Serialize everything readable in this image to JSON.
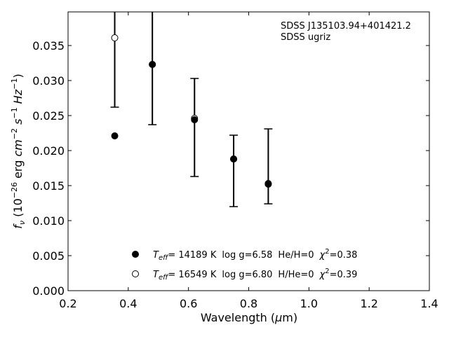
{
  "chart_data": {
    "type": "scatter",
    "xlabel": "Wavelength (μm)",
    "ylabel": "f_ν (10^-26 erg cm^-2 s^-1 Hz^-1)",
    "xlim": [
      0.2,
      1.4
    ],
    "ylim": [
      0.0,
      0.0398
    ],
    "xticks": [
      "0.2",
      "0.4",
      "0.6",
      "0.8",
      "1.0",
      "1.2",
      "1.4"
    ],
    "yticks": [
      "0.000",
      "0.005",
      "0.010",
      "0.015",
      "0.020",
      "0.025",
      "0.030",
      "0.035"
    ],
    "annotation": [
      "SDSS J135103.94+401421.2",
      "SDSS ugriz"
    ],
    "observed": {
      "x": [
        0.355,
        0.48,
        0.62,
        0.75,
        0.865
      ],
      "y": [
        0.0405,
        0.0323,
        0.0245,
        0.0188,
        0.0153
      ],
      "yerr_low": [
        0.0262,
        0.0237,
        0.0163,
        0.012,
        0.0124
      ],
      "yerr_high": [
        0.055,
        0.044,
        0.0303,
        0.0222,
        0.0231
      ]
    },
    "series": [
      {
        "marker": "filled-circle",
        "x": [
          0.355,
          0.48,
          0.62,
          0.75,
          0.865
        ],
        "y": [
          0.0221,
          0.0323,
          0.0244,
          0.0188,
          0.0152
        ],
        "legend": {
          "teff_value": "= 14189 K",
          "logg": "log g=6.58",
          "comp": "He/H=0",
          "chi2": "=0.38"
        }
      },
      {
        "marker": "open-circle",
        "x": [
          0.355,
          0.48,
          0.62,
          0.75,
          0.865
        ],
        "y": [
          0.0361,
          0.0323,
          0.0246,
          0.0188,
          0.0153
        ],
        "legend": {
          "teff_value": "= 16549 K",
          "logg": "log g=6.80",
          "comp": "H/He=0",
          "chi2": "=0.39"
        }
      }
    ],
    "grid": false,
    "legend_position": "bottom-center"
  }
}
